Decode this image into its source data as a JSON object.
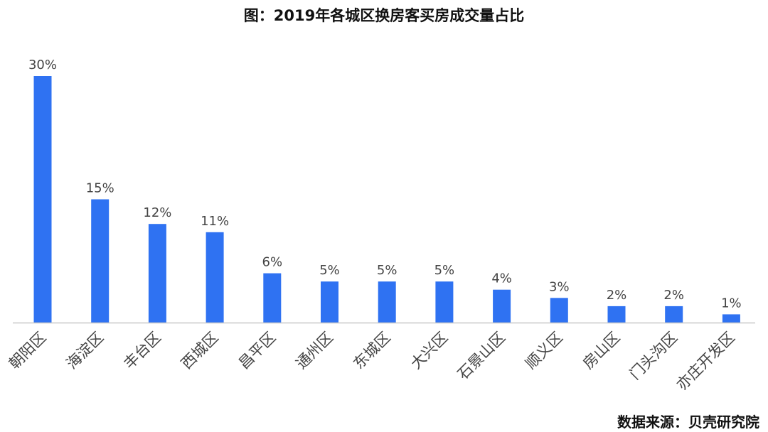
{
  "title": "图：2019年各城区换房客买房成交量占比",
  "source": "数据来源：贝壳研究院",
  "colors": {
    "bar": "#2f72f2",
    "axis": "#c8c8c8",
    "label": "#444444",
    "text": "#111111"
  },
  "chart_data": {
    "type": "bar",
    "title": "图：2019年各城区换房客买房成交量占比",
    "xlabel": "",
    "ylabel": "",
    "grid": false,
    "legend": "none",
    "ylim": [
      0,
      30
    ],
    "categories": [
      "朝阳区",
      "海淀区",
      "丰台区",
      "西城区",
      "昌平区",
      "通州区",
      "东城区",
      "大兴区",
      "石景山区",
      "顺义区",
      "房山区",
      "门头沟区",
      "亦庄开发区"
    ],
    "values": [
      30,
      15,
      12,
      11,
      6,
      5,
      5,
      5,
      4,
      3,
      2,
      2,
      1
    ],
    "data_labels": [
      "30%",
      "15%",
      "12%",
      "11%",
      "6%",
      "5%",
      "5%",
      "5%",
      "4%",
      "3%",
      "2%",
      "2%",
      "1%"
    ]
  }
}
